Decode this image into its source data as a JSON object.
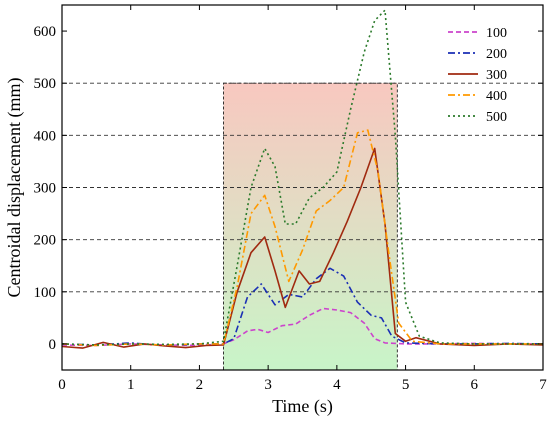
{
  "chart_data": {
    "type": "line",
    "xlabel": "Time (s)",
    "ylabel": "Centroidal displacement (mm)",
    "xlim": [
      0,
      7
    ],
    "ylim": [
      -50,
      650
    ],
    "xticks": [
      "0",
      "1",
      "2",
      "3",
      "4",
      "5",
      "6",
      "7"
    ],
    "yticks": [
      "0",
      "100",
      "200",
      "300",
      "400",
      "500",
      "600"
    ],
    "grid": "dashed horizontal at 100-500",
    "legend_position": "top-right",
    "highlight_region": {
      "x": [
        2.35,
        4.88
      ],
      "y": [
        -50,
        500
      ],
      "top_color": "#f8c8c0",
      "bottom_color": "#c8f5c8"
    },
    "series": [
      {
        "name": "100",
        "color": "#cc44cc",
        "dash": "dash",
        "x": [
          0,
          0.5,
          1,
          1.5,
          2,
          2.35,
          2.5,
          2.7,
          2.85,
          3.0,
          3.2,
          3.4,
          3.6,
          3.8,
          4.0,
          4.2,
          4.4,
          4.55,
          4.7,
          5.0,
          5.5,
          6,
          6.5,
          7
        ],
        "y": [
          -2,
          -3,
          0,
          -2,
          -3,
          0,
          8,
          25,
          28,
          22,
          35,
          38,
          55,
          68,
          65,
          60,
          40,
          10,
          2,
          0,
          0,
          1,
          0,
          0
        ]
      },
      {
        "name": "200",
        "color": "#1a2fb5",
        "dash": "dashdot",
        "x": [
          0,
          0.5,
          1,
          1.5,
          2,
          2.35,
          2.5,
          2.7,
          2.9,
          3.1,
          3.3,
          3.5,
          3.7,
          3.9,
          4.1,
          4.3,
          4.5,
          4.65,
          4.8,
          5.0,
          5.5,
          6,
          6.5,
          7
        ],
        "y": [
          0,
          -2,
          2,
          -3,
          0,
          0,
          10,
          90,
          115,
          75,
          95,
          90,
          125,
          145,
          130,
          80,
          55,
          50,
          15,
          2,
          0,
          0,
          1,
          0
        ]
      },
      {
        "name": "300",
        "color": "#a02a10",
        "dash": "solid",
        "x": [
          0,
          0.3,
          0.6,
          0.9,
          1.2,
          1.5,
          1.8,
          2.1,
          2.35,
          2.55,
          2.75,
          2.95,
          3.1,
          3.25,
          3.45,
          3.6,
          3.75,
          3.95,
          4.15,
          4.35,
          4.55,
          4.7,
          4.85,
          5.0,
          5.15,
          5.5,
          6,
          6.5,
          7
        ],
        "y": [
          -5,
          -8,
          3,
          -6,
          0,
          -4,
          -7,
          -3,
          -2,
          100,
          175,
          205,
          140,
          70,
          140,
          115,
          120,
          175,
          235,
          300,
          375,
          230,
          20,
          5,
          12,
          0,
          -3,
          0,
          -2
        ]
      },
      {
        "name": "400",
        "color": "#ff9900",
        "dash": "dashdot",
        "x": [
          0,
          0.5,
          1,
          1.5,
          2,
          2.35,
          2.55,
          2.75,
          2.95,
          3.1,
          3.3,
          3.5,
          3.7,
          3.9,
          4.1,
          4.3,
          4.45,
          4.6,
          4.75,
          4.9,
          5.1,
          5.5,
          6,
          6.5,
          7
        ],
        "y": [
          0,
          -3,
          0,
          -2,
          0,
          0,
          110,
          250,
          285,
          225,
          120,
          180,
          255,
          275,
          300,
          405,
          410,
          330,
          180,
          40,
          5,
          0,
          0,
          0,
          0
        ]
      },
      {
        "name": "500",
        "color": "#2b7a2b",
        "dash": "dot",
        "x": [
          0,
          0.5,
          1,
          1.5,
          2,
          2.35,
          2.55,
          2.75,
          2.95,
          3.1,
          3.25,
          3.4,
          3.6,
          3.8,
          4.0,
          4.2,
          4.4,
          4.55,
          4.7,
          4.85,
          5.0,
          5.2,
          5.5,
          6,
          6.5,
          7
        ],
        "y": [
          0,
          -2,
          0,
          -1,
          0,
          5,
          150,
          300,
          375,
          340,
          230,
          230,
          280,
          300,
          330,
          450,
          560,
          620,
          640,
          400,
          80,
          15,
          2,
          0,
          0,
          0
        ]
      }
    ]
  }
}
